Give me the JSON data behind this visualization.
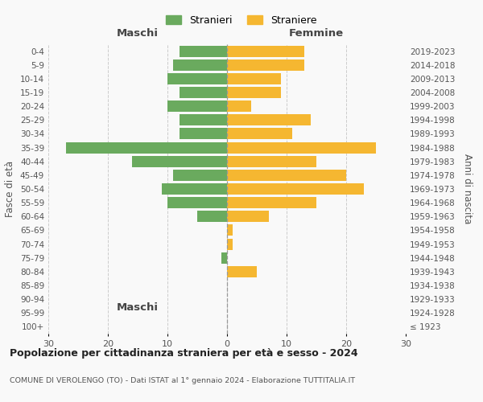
{
  "age_groups": [
    "100+",
    "95-99",
    "90-94",
    "85-89",
    "80-84",
    "75-79",
    "70-74",
    "65-69",
    "60-64",
    "55-59",
    "50-54",
    "45-49",
    "40-44",
    "35-39",
    "30-34",
    "25-29",
    "20-24",
    "15-19",
    "10-14",
    "5-9",
    "0-4"
  ],
  "birth_years": [
    "≤ 1923",
    "1924-1928",
    "1929-1933",
    "1934-1938",
    "1939-1943",
    "1944-1948",
    "1949-1953",
    "1954-1958",
    "1959-1963",
    "1964-1968",
    "1969-1973",
    "1974-1978",
    "1979-1983",
    "1984-1988",
    "1989-1993",
    "1994-1998",
    "1999-2003",
    "2004-2008",
    "2009-2013",
    "2014-2018",
    "2019-2023"
  ],
  "males": [
    0,
    0,
    0,
    0,
    0,
    1,
    0,
    0,
    5,
    10,
    11,
    9,
    16,
    27,
    8,
    8,
    10,
    8,
    10,
    9,
    8
  ],
  "females": [
    0,
    0,
    0,
    0,
    5,
    0,
    1,
    1,
    7,
    15,
    23,
    20,
    15,
    25,
    11,
    14,
    4,
    9,
    9,
    13,
    13
  ],
  "male_color": "#6aaa5e",
  "female_color": "#f5b731",
  "background_color": "#f9f9f9",
  "grid_color": "#cccccc",
  "title": "Popolazione per cittadinanza straniera per età e sesso - 2024",
  "subtitle": "COMUNE DI VEROLENGO (TO) - Dati ISTAT al 1° gennaio 2024 - Elaborazione TUTTITALIA.IT",
  "xlabel_left": "Maschi",
  "xlabel_right": "Femmine",
  "ylabel_left": "Fasce di età",
  "ylabel_right": "Anni di nascita",
  "legend_male": "Stranieri",
  "legend_female": "Straniere",
  "xlim": 30,
  "bar_height": 0.82
}
